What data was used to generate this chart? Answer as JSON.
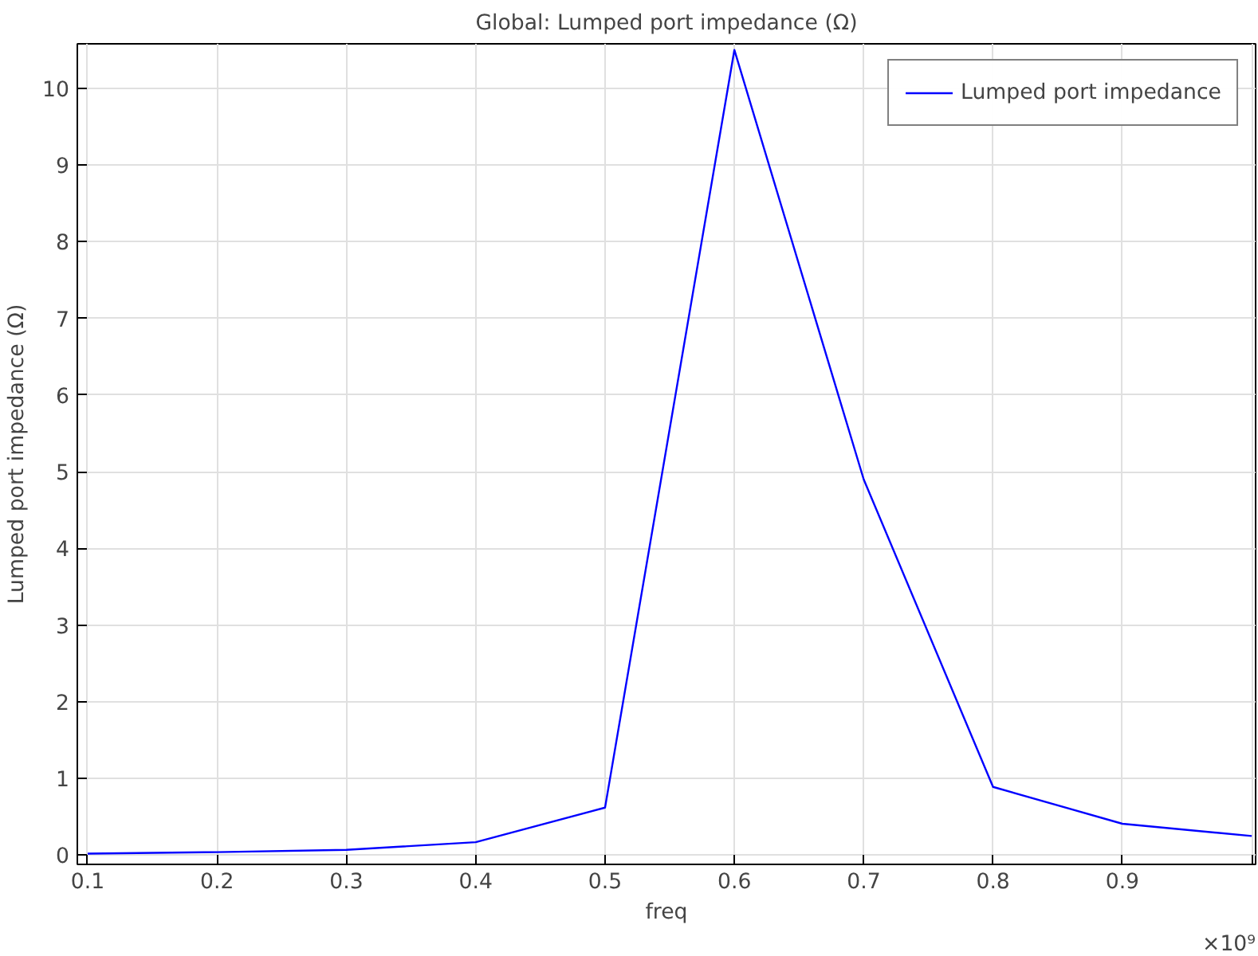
{
  "chart_data": {
    "type": "line",
    "title": "Global: Lumped port impedance (Ω)",
    "xlabel": "freq",
    "ylabel": "Lumped port impedance (Ω)",
    "x": [
      0.1,
      0.2,
      0.3,
      0.4,
      0.5,
      0.6,
      0.7,
      0.8,
      0.9,
      1.0
    ],
    "series": [
      {
        "name": "Lumped port impedance",
        "color": "#0000ff",
        "values": [
          0.02,
          0.04,
          0.07,
          0.17,
          0.62,
          10.5,
          4.9,
          0.89,
          0.41,
          0.25
        ]
      }
    ],
    "xlim": [
      0.092,
      1.003
    ],
    "ylim": [
      -0.12,
      10.58
    ],
    "xticks": [
      0.1,
      0.2,
      0.3,
      0.4,
      0.5,
      0.6,
      0.7,
      0.8,
      0.9,
      {
        "value": 1.0,
        "label": null
      }
    ],
    "annotations": [
      "×10⁹"
    ],
    "yticks": [
      0,
      1,
      2,
      3,
      4,
      5,
      6,
      7,
      8,
      9,
      10
    ],
    "grid": true,
    "legend": "top right",
    "marker": "none",
    "line_style": "solid"
  }
}
